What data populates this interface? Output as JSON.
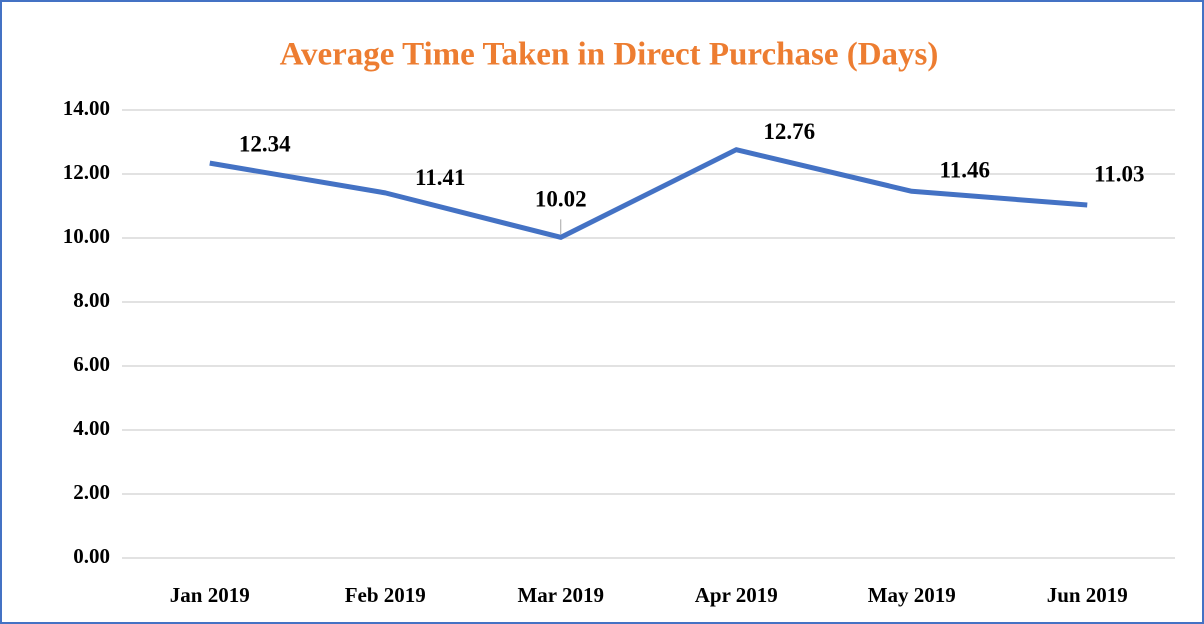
{
  "chart_data": {
    "type": "line",
    "title": "Average Time Taken in Direct Purchase (Days)",
    "categories": [
      "Jan 2019",
      "Feb 2019",
      "Mar 2019",
      "Apr 2019",
      "May 2019",
      "Jun 2019"
    ],
    "series": [
      {
        "name": "Average Time Taken in Direct Purchase (Days)",
        "color": "#4472c4",
        "values": [
          12.34,
          11.41,
          10.02,
          12.76,
          11.46,
          11.03
        ]
      }
    ],
    "ylim": [
      0,
      14
    ],
    "yticks": [
      {
        "value": 0,
        "label": "0.00"
      },
      {
        "value": 2,
        "label": "2.00"
      },
      {
        "value": 4,
        "label": "4.00"
      },
      {
        "value": 6,
        "label": "6.00"
      },
      {
        "value": 8,
        "label": "8.00"
      },
      {
        "value": 10,
        "label": "10.00"
      },
      {
        "value": 12,
        "label": "12.00"
      },
      {
        "value": 14,
        "label": "14.00"
      }
    ],
    "grid": true
  }
}
